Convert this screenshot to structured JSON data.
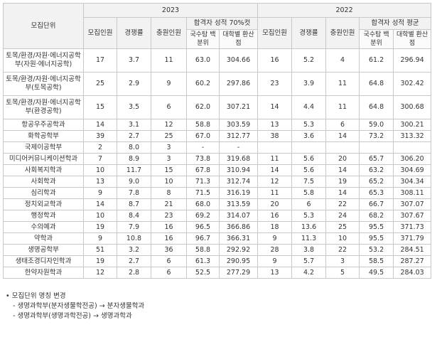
{
  "table": {
    "header": {
      "unit": "모집단위",
      "years": [
        {
          "year": "2023",
          "cols": [
            "모집인원",
            "경쟁률",
            "충원인원"
          ],
          "score_group": "합격자 성적 70%컷",
          "score_cols": [
            "국수탐 백분위",
            "대학별 환산점"
          ]
        },
        {
          "year": "2022",
          "cols": [
            "모집인원",
            "경쟁률",
            "충원인원"
          ],
          "score_group": "합격자 성적 평균",
          "score_cols": [
            "국수탐 백분위",
            "대학별 환산점"
          ]
        }
      ]
    },
    "rows": [
      [
        "토목/환경/자원·에너지공학부(자원·에너지공학)",
        "17",
        "3.7",
        "11",
        "63.0",
        "304.66",
        "16",
        "5.2",
        "4",
        "61.2",
        "296.94"
      ],
      [
        "토목/환경/자원·에너지공학부(토목공학)",
        "25",
        "2.9",
        "9",
        "60.2",
        "297.86",
        "23",
        "3.9",
        "11",
        "64.8",
        "302.42"
      ],
      [
        "토목/환경/자원·에너지공학부(환경공학)",
        "15",
        "3.5",
        "6",
        "62.0",
        "307.21",
        "14",
        "4.4",
        "11",
        "64.8",
        "300.68"
      ],
      [
        "항공우주공학과",
        "14",
        "3.1",
        "12",
        "58.8",
        "303.59",
        "13",
        "5.3",
        "6",
        "59.0",
        "300.21"
      ],
      [
        "화학공학부",
        "39",
        "2.7",
        "25",
        "67.0",
        "312.77",
        "38",
        "3.6",
        "14",
        "73.2",
        "313.32"
      ],
      [
        "국제이공학부",
        "2",
        "8.0",
        "3",
        "-",
        "-",
        null,
        null,
        null,
        null,
        null
      ],
      [
        "미디어커뮤니케이션학과",
        "7",
        "8.9",
        "3",
        "73.8",
        "319.68",
        "11",
        "5.6",
        "20",
        "65.7",
        "306.20"
      ],
      [
        "사회복지학과",
        "10",
        "11.7",
        "15",
        "67.8",
        "310.94",
        "14",
        "5.6",
        "14",
        "63.2",
        "304.69"
      ],
      [
        "사회학과",
        "13",
        "9.0",
        "10",
        "71.3",
        "312.74",
        "12",
        "7.5",
        "19",
        "65.2",
        "304.34"
      ],
      [
        "심리학과",
        "9",
        "7.8",
        "8",
        "71.5",
        "316.19",
        "11",
        "5.8",
        "14",
        "65.3",
        "308.11"
      ],
      [
        "정치외교학과",
        "14",
        "8.7",
        "21",
        "68.0",
        "313.59",
        "20",
        "6",
        "22",
        "66.7",
        "307.07"
      ],
      [
        "행정학과",
        "10",
        "8.4",
        "23",
        "69.2",
        "314.07",
        "16",
        "5.3",
        "24",
        "68.2",
        "307.67"
      ],
      [
        "수의예과",
        "19",
        "7.9",
        "16",
        "96.5",
        "366.86",
        "18",
        "13.6",
        "25",
        "95.5",
        "371.73"
      ],
      [
        "약학과",
        "9",
        "10.8",
        "16",
        "96.7",
        "366.31",
        "9",
        "11.3",
        "10",
        "95.5",
        "371.79"
      ],
      [
        "생명공학부",
        "51",
        "3.2",
        "36",
        "58.8",
        "292.92",
        "28",
        "3.8",
        "22",
        "53.2",
        "284.51"
      ],
      [
        "생태조경디자인학과",
        "19",
        "2.7",
        "6",
        "61.3",
        "290.95",
        "9",
        "5.7",
        "3",
        "58.5",
        "287.27"
      ],
      [
        "한약자원학과",
        "12",
        "2.8",
        "6",
        "52.5",
        "277.29",
        "13",
        "4.2",
        "5",
        "49.5",
        "284.03"
      ]
    ]
  },
  "notes": {
    "title": "모집단위 명칭 변경",
    "items": [
      "생명과학부(분자생물학전공) → 분자생물학과",
      "생명과학부(생명과학전공) → 생명과학과"
    ]
  }
}
